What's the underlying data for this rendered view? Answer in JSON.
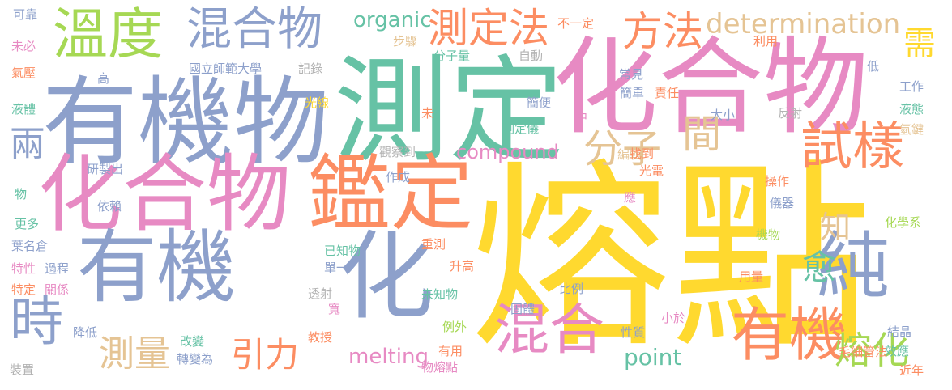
{
  "colors": {
    "yellow": "#FFD92F",
    "blue": "#8DA0CB",
    "pink": "#E78AC3",
    "green": "#66C2A5",
    "orange": "#FC8D62",
    "tan": "#E5C494",
    "lime": "#A6D854",
    "gray": "#B3B3B3"
  },
  "words": [
    {
      "text": "熔點",
      "color": "yellow"
    },
    {
      "text": "測定",
      "color": "green"
    },
    {
      "text": "化合物",
      "color": "pink"
    },
    {
      "text": "有機物",
      "color": "blue"
    },
    {
      "text": "化合物",
      "color": "pink"
    },
    {
      "text": "有機",
      "color": "blue"
    },
    {
      "text": "鑑定",
      "color": "orange"
    },
    {
      "text": "化",
      "color": "blue"
    },
    {
      "text": "溫度",
      "color": "lime"
    },
    {
      "text": "混合物",
      "color": "blue"
    },
    {
      "text": "試樣",
      "color": "orange"
    },
    {
      "text": "純",
      "color": "blue"
    },
    {
      "text": "有機",
      "color": "orange"
    },
    {
      "text": "混合",
      "color": "pink"
    },
    {
      "text": "時",
      "color": "blue"
    },
    {
      "text": "測定法",
      "color": "orange"
    },
    {
      "text": "方法",
      "color": "orange"
    },
    {
      "text": "分子",
      "color": "tan"
    },
    {
      "text": "間",
      "color": "tan"
    },
    {
      "text": "愈",
      "color": "green"
    },
    {
      "text": "兩",
      "color": "blue"
    },
    {
      "text": "引力",
      "color": "orange"
    },
    {
      "text": "測量",
      "color": "tan"
    },
    {
      "text": "熔化",
      "color": "lime"
    },
    {
      "text": "需",
      "color": "yellow"
    },
    {
      "text": "知",
      "color": "tan"
    },
    {
      "text": "determination",
      "color": "tan"
    },
    {
      "text": "organic",
      "color": "green"
    },
    {
      "text": "compound",
      "color": "pink"
    },
    {
      "text": "melting",
      "color": "pink"
    },
    {
      "text": "point",
      "color": "green"
    },
    {
      "text": "可靠",
      "color": "blue"
    },
    {
      "text": "未必",
      "color": "pink"
    },
    {
      "text": "氣壓",
      "color": "orange"
    },
    {
      "text": "液體",
      "color": "green"
    },
    {
      "text": "研製出",
      "color": "blue"
    },
    {
      "text": "物",
      "color": "green"
    },
    {
      "text": "更多",
      "color": "green"
    },
    {
      "text": "葉名倉",
      "color": "blue"
    },
    {
      "text": "特性",
      "color": "pink"
    },
    {
      "text": "過程",
      "color": "blue"
    },
    {
      "text": "特定",
      "color": "orange"
    },
    {
      "text": "關係",
      "color": "pink"
    },
    {
      "text": "降低",
      "color": "blue"
    },
    {
      "text": "裝置",
      "color": "gray"
    },
    {
      "text": "高",
      "color": "blue"
    },
    {
      "text": "國立師範大學",
      "color": "blue"
    },
    {
      "text": "記錄",
      "color": "gray"
    },
    {
      "text": "光線",
      "color": "yellow"
    },
    {
      "text": "依賴",
      "color": "blue"
    },
    {
      "text": "改變",
      "color": "green"
    },
    {
      "text": "轉變為",
      "color": "blue"
    },
    {
      "text": "透射",
      "color": "gray"
    },
    {
      "text": "單一",
      "color": "blue"
    },
    {
      "text": "已知物",
      "color": "green"
    },
    {
      "text": "重測",
      "color": "orange"
    },
    {
      "text": "升高",
      "color": "orange"
    },
    {
      "text": "寬",
      "color": "pink"
    },
    {
      "text": "教授",
      "color": "orange"
    },
    {
      "text": "未知物",
      "color": "green"
    },
    {
      "text": "有用",
      "color": "orange"
    },
    {
      "text": "物熔點",
      "color": "pink"
    },
    {
      "text": "例外",
      "color": "lime"
    },
    {
      "text": "固體",
      "color": "blue"
    },
    {
      "text": "比例",
      "color": "blue"
    },
    {
      "text": "步驟",
      "color": "tan"
    },
    {
      "text": "分子量",
      "color": "green"
    },
    {
      "text": "自動",
      "color": "gray"
    },
    {
      "text": "不一定",
      "color": "orange"
    },
    {
      "text": "未",
      "color": "orange"
    },
    {
      "text": "簡便",
      "color": "blue"
    },
    {
      "text": "中",
      "color": "pink"
    },
    {
      "text": "測定儀",
      "color": "green"
    },
    {
      "text": "觀察到",
      "color": "gray"
    },
    {
      "text": "作成",
      "color": "blue"
    },
    {
      "text": "編輯",
      "color": "tan"
    },
    {
      "text": "光電",
      "color": "orange"
    },
    {
      "text": "找到",
      "color": "orange"
    },
    {
      "text": "利用",
      "color": "orange"
    },
    {
      "text": "常見",
      "color": "blue"
    },
    {
      "text": "低",
      "color": "blue"
    },
    {
      "text": "簡單",
      "color": "blue"
    },
    {
      "text": "責任",
      "color": "orange"
    },
    {
      "text": "大小",
      "color": "blue"
    },
    {
      "text": "反射",
      "color": "gray"
    },
    {
      "text": "工作",
      "color": "blue"
    },
    {
      "text": "液態",
      "color": "green"
    },
    {
      "text": "氫鍵",
      "color": "tan"
    },
    {
      "text": "操作",
      "color": "orange"
    },
    {
      "text": "儀器",
      "color": "blue"
    },
    {
      "text": "應",
      "color": "pink"
    },
    {
      "text": "化學系",
      "color": "lime"
    },
    {
      "text": "機物",
      "color": "lime"
    },
    {
      "text": "用量",
      "color": "orange"
    },
    {
      "text": "小於",
      "color": "pink"
    },
    {
      "text": "性質",
      "color": "blue"
    },
    {
      "text": "毛細管法",
      "color": "orange"
    },
    {
      "text": "結晶",
      "color": "blue"
    },
    {
      "text": "效應",
      "color": "green"
    },
    {
      "text": "近年",
      "color": "orange"
    }
  ]
}
